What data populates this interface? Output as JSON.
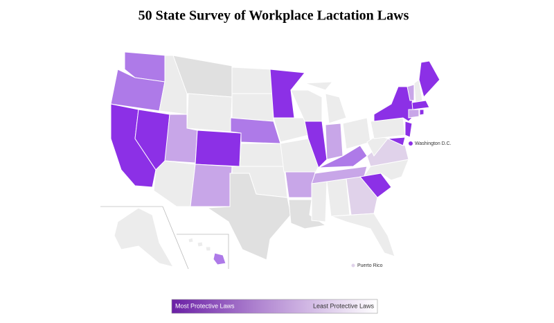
{
  "title": "50 State Survey of Workplace Lactation Laws",
  "annotations": [
    "Washington D.C.",
    "Puerto Rico"
  ],
  "legend": {
    "high_label": "Most Protective Laws",
    "low_label": "Least Protective Laws"
  }
}
